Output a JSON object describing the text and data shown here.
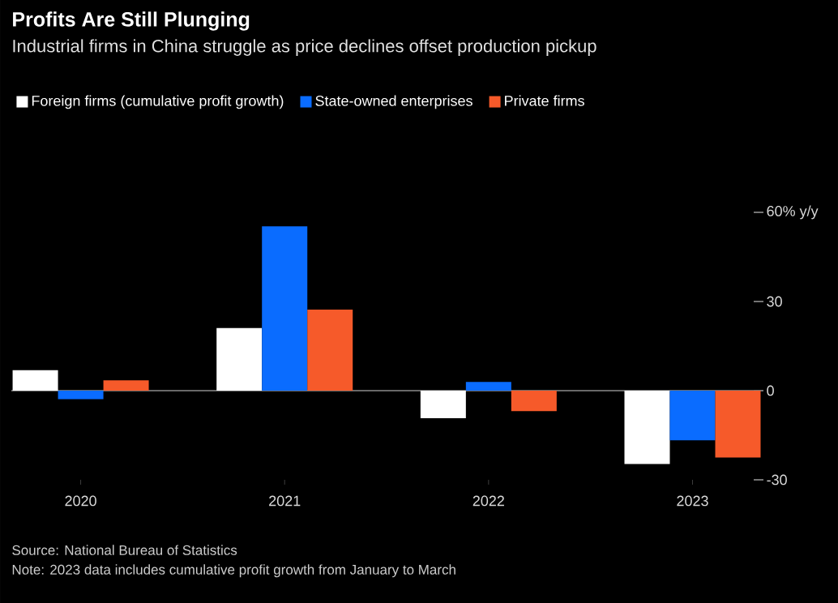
{
  "chart_data": {
    "type": "bar",
    "title": "Profits Are Still Plunging",
    "subtitle": "Industrial firms in China struggle as price declines offset production pickup",
    "categories": [
      "2020",
      "2021",
      "2022",
      "2023"
    ],
    "series": [
      {
        "name": "Foreign firms (cumulative profit growth)",
        "color": "#ffffff",
        "values": [
          6.9,
          21.1,
          -9.3,
          -24.7
        ]
      },
      {
        "name": "State-owned enterprises",
        "color": "#0a6cff",
        "values": [
          -2.9,
          55.3,
          2.9,
          -16.7
        ]
      },
      {
        "name": "Private firms",
        "color": "#f65a2a",
        "values": [
          3.5,
          27.3,
          -6.9,
          -22.5
        ]
      }
    ],
    "ylim": [
      -30,
      60
    ],
    "yticks": [
      -30,
      0,
      30,
      {
        "value": 60,
        "label": "60% y/y"
      }
    ],
    "legend": "top",
    "ref_lines": [
      {
        "axis": "y",
        "value": 0,
        "color": "#8c8c8c"
      }
    ],
    "annotations": [
      "Source: National Bureau of Statistics",
      "Note: 2023 data includes cumulative profit growth from January to March"
    ]
  }
}
